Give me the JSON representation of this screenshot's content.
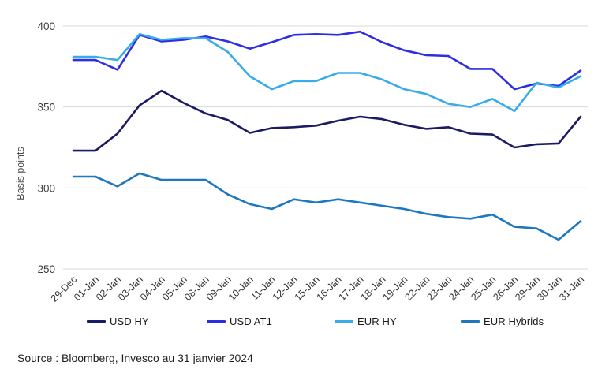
{
  "chart_data": {
    "type": "line",
    "title": "",
    "xlabel": "",
    "ylabel": "Basis points",
    "ylim": [
      250,
      400
    ],
    "yticks": [
      250,
      300,
      350,
      400
    ],
    "grid": true,
    "legend_position": "bottom",
    "categories": [
      "29-Dec",
      "01-Jan",
      "02-Jan",
      "03-Jan",
      "04-Jan",
      "05-Jan",
      "08-Jan",
      "09-Jan",
      "10-Jan",
      "11-Jan",
      "12-Jan",
      "15-Jan",
      "16-Jan",
      "17-Jan",
      "18-Jan",
      "19-Jan",
      "22-Jan",
      "23-Jan",
      "24-Jan",
      "25-Jan",
      "26-Jan",
      "29-Jan",
      "30-Jan",
      "31-Jan"
    ],
    "series": [
      {
        "name": "USD HY",
        "color": "#1b1a64",
        "values": [
          323,
          323,
          333.5,
          351,
          360,
          352.5,
          346,
          342,
          334,
          337,
          337.5,
          338.5,
          341.5,
          344,
          342.5,
          339,
          336.5,
          337.5,
          333.5,
          333,
          325,
          327,
          327.5,
          344
        ]
      },
      {
        "name": "USD AT1",
        "color": "#2d2de4",
        "values": [
          379,
          379,
          373,
          394.5,
          390.5,
          391.5,
          393.5,
          390.5,
          386,
          390,
          394.5,
          395,
          394.5,
          396.5,
          390,
          385,
          382,
          381.5,
          373.5,
          373.5,
          361,
          364.5,
          363,
          372.5
        ]
      },
      {
        "name": "EUR HY",
        "color": "#38abe8",
        "values": [
          381,
          381,
          379,
          395,
          391.5,
          392.5,
          392.5,
          384,
          369,
          361,
          366,
          366,
          371,
          371,
          367,
          361,
          358,
          352,
          350,
          355,
          347.5,
          365,
          362,
          369
        ]
      },
      {
        "name": "EUR Hybrids",
        "color": "#1e78c0",
        "values": [
          307,
          307,
          301,
          309,
          305,
          305,
          305,
          296,
          290,
          287,
          293,
          291,
          293,
          291,
          289,
          287,
          284,
          282,
          281,
          283.5,
          276,
          275,
          268,
          279.5
        ]
      }
    ]
  },
  "source": {
    "text": "Source : Bloomberg, Invesco au 31 janvier 2024"
  },
  "colors": {
    "background": "#ffffff",
    "grid": "#d9d9d9",
    "y_tick_text": "#3d3d3d",
    "x_tick_text": "#333333",
    "axis_label": "#4d4d4d"
  }
}
